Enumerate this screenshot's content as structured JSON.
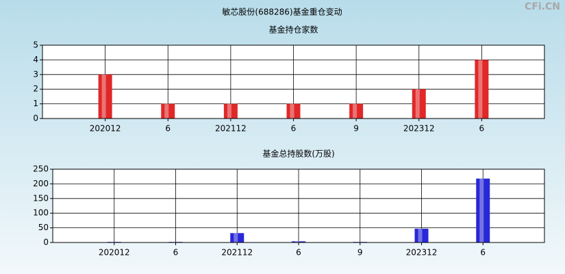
{
  "title": "敏芯股份(688286)基金重仓变动",
  "watermark": "CFi.CN",
  "chart_data": [
    {
      "type": "bar",
      "title": "基金持仓家数",
      "categories": [
        "202012",
        "6",
        "202112",
        "6",
        "9",
        "202312",
        "6"
      ],
      "values": [
        3,
        1,
        1,
        1,
        1,
        2,
        4
      ],
      "color": "#e02828",
      "ylim": [
        0,
        5
      ],
      "yticks": [
        0,
        1,
        2,
        3,
        4,
        5
      ],
      "grid": true
    },
    {
      "type": "bar",
      "title": "基金总持股数(万股)",
      "categories": [
        "202012",
        "6",
        "202112",
        "6",
        "9",
        "202312",
        "6"
      ],
      "values": [
        2,
        2,
        32,
        4,
        2,
        47,
        218
      ],
      "color": "#2828d8",
      "ylim": [
        0,
        250
      ],
      "yticks": [
        0,
        50,
        100,
        150,
        200,
        250
      ],
      "grid": true
    }
  ]
}
